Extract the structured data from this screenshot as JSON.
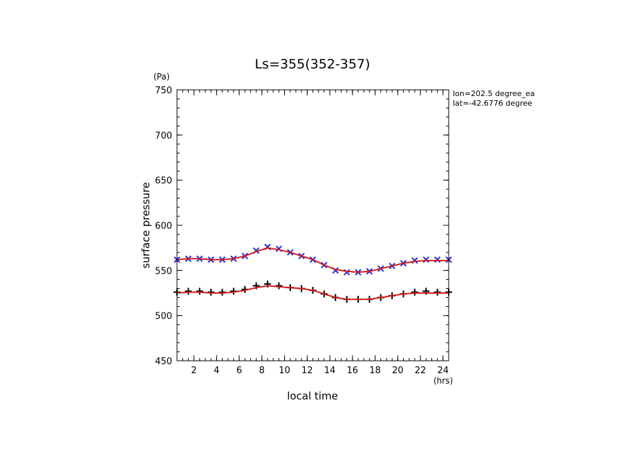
{
  "chart_data": {
    "type": "scatter",
    "title": "Ls=355(352-357)",
    "xlabel": "local time",
    "ylabel": "surface pressure",
    "x_unit": "(hrs)",
    "y_unit": "(Pa)",
    "xlim": [
      0.5,
      24.5
    ],
    "ylim": [
      450,
      750
    ],
    "x_ticks": [
      2,
      4,
      6,
      8,
      10,
      12,
      14,
      16,
      18,
      20,
      22,
      24
    ],
    "y_ticks": [
      450,
      500,
      550,
      600,
      650,
      700,
      750
    ],
    "annotations": [
      "lon=202.5 degree_ea",
      "lat=-42.6776 degree"
    ],
    "grid": false,
    "series": [
      {
        "marker": "x",
        "color": "#1f2bd6",
        "x": [
          0.5,
          1.5,
          2.5,
          3.5,
          4.5,
          5.5,
          6.5,
          7.5,
          8.5,
          9.5,
          10.5,
          11.5,
          12.5,
          13.5,
          14.5,
          15.5,
          16.5,
          17.5,
          18.5,
          19.5,
          20.5,
          21.5,
          22.5,
          23.5,
          24.5
        ],
        "values": [
          562,
          563,
          563,
          562,
          562,
          563,
          566,
          572,
          576,
          574,
          570,
          566,
          562,
          556,
          550,
          548,
          548,
          549,
          552,
          555,
          558,
          561,
          562,
          562,
          562
        ]
      },
      {
        "marker": "+",
        "color": "#000000",
        "x": [
          0.5,
          1.5,
          2.5,
          3.5,
          4.5,
          5.5,
          6.5,
          7.5,
          8.5,
          9.5,
          10.5,
          11.5,
          12.5,
          13.5,
          14.5,
          15.5,
          16.5,
          17.5,
          18.5,
          19.5,
          20.5,
          21.5,
          22.5,
          23.5,
          24.5
        ],
        "values": [
          526,
          527,
          527,
          526,
          526,
          527,
          529,
          533,
          535,
          533,
          531,
          530,
          528,
          524,
          520,
          518,
          518,
          518,
          520,
          522,
          524,
          526,
          527,
          526,
          526
        ]
      },
      {
        "type": "line",
        "color": "#d61c1c",
        "x": [
          0.5,
          1.5,
          2.5,
          3.5,
          4.5,
          5.5,
          6.5,
          7.5,
          8.5,
          9.5,
          10.5,
          11.5,
          12.5,
          13.5,
          14.5,
          15.5,
          16.5,
          17.5,
          18.5,
          19.5,
          20.5,
          21.5,
          22.5,
          23.5,
          24.5
        ],
        "values": [
          562,
          563,
          563,
          562,
          562,
          563,
          566,
          571,
          575,
          573,
          570,
          566,
          562,
          556,
          551,
          549,
          548,
          549,
          552,
          555,
          558,
          560,
          561,
          561,
          561
        ]
      },
      {
        "type": "line",
        "color": "#d61c1c",
        "x": [
          0.5,
          1.5,
          2.5,
          3.5,
          4.5,
          5.5,
          6.5,
          7.5,
          8.5,
          9.5,
          10.5,
          11.5,
          12.5,
          13.5,
          14.5,
          15.5,
          16.5,
          17.5,
          18.5,
          19.5,
          20.5,
          21.5,
          22.5,
          23.5,
          24.5
        ],
        "values": [
          525,
          526,
          526,
          525,
          525,
          526,
          528,
          531,
          533,
          532,
          531,
          530,
          528,
          524,
          520,
          518,
          518,
          518,
          520,
          522,
          524,
          525,
          525,
          525,
          525
        ]
      }
    ]
  }
}
